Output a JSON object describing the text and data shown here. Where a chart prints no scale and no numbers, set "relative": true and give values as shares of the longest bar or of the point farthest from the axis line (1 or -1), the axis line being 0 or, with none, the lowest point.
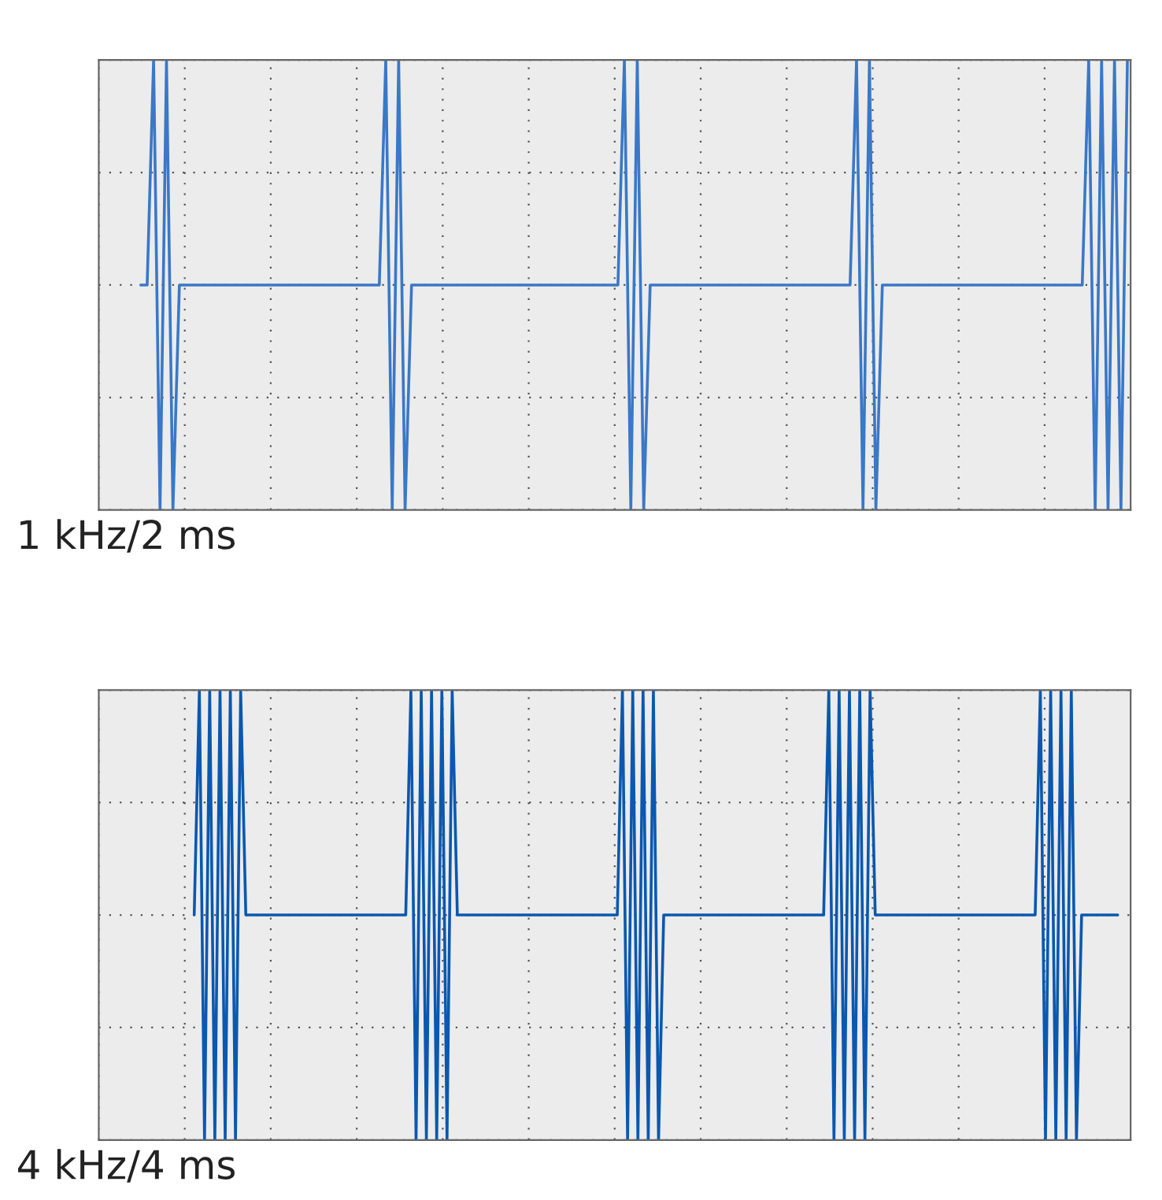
{
  "chart_data": [
    {
      "type": "line",
      "relative": true,
      "grid": true,
      "tick_labels": false,
      "annotations": [
        "1 kHz/2 ms"
      ],
      "categories": [
        null,
        null,
        null,
        null,
        null,
        null,
        null,
        null,
        null,
        null,
        null,
        null,
        null,
        null,
        null,
        null,
        null,
        null,
        null,
        null,
        null,
        null,
        null,
        null,
        null,
        null,
        null,
        null,
        null,
        null,
        null,
        null,
        null,
        null,
        null,
        null,
        null,
        null,
        null,
        null,
        null,
        null,
        null,
        null,
        null,
        null,
        null,
        null,
        null,
        null,
        null,
        null,
        null,
        null,
        null,
        null,
        null,
        null,
        null,
        null,
        null,
        null,
        null,
        null,
        null,
        null,
        null,
        null,
        null,
        null,
        null,
        null,
        null,
        null,
        null,
        null,
        null,
        null,
        null,
        null,
        null,
        null,
        null,
        null,
        null,
        null,
        null,
        null,
        null,
        null,
        null,
        null,
        null,
        null,
        null,
        null,
        null,
        null,
        null,
        null,
        null,
        null,
        null,
        null,
        null,
        null,
        null,
        null,
        null,
        null,
        null,
        null,
        null,
        null,
        null,
        null,
        null,
        null,
        null,
        null,
        null,
        null,
        null,
        null,
        null,
        null,
        null,
        null,
        null,
        null,
        null,
        null,
        null,
        null,
        null,
        null,
        null,
        null,
        null,
        null,
        null,
        null,
        null,
        null,
        null,
        null,
        null,
        null,
        null,
        null,
        null,
        null,
        null,
        null,
        null,
        null,
        null,
        null,
        null,
        null
      ],
      "series": [
        {
          "color": "#3a78c8",
          "values": [
            null,
            null,
            null,
            null,
            null,
            null,
            0,
            0,
            1,
            -1,
            1,
            -1,
            0,
            0,
            0,
            0,
            0,
            0,
            0,
            0,
            0,
            0,
            0,
            0,
            0,
            0,
            0,
            0,
            0,
            0,
            0,
            0,
            0,
            0,
            0,
            0,
            0,
            0,
            0,
            0,
            0,
            0,
            0,
            0,
            1,
            -1,
            1,
            -1,
            0,
            0,
            0,
            0,
            0,
            0,
            0,
            0,
            0,
            0,
            0,
            0,
            0,
            0,
            0,
            0,
            0,
            0,
            0,
            0,
            0,
            0,
            0,
            0,
            0,
            0,
            0,
            0,
            0,
            0,
            0,
            0,
            0,
            1,
            -1,
            1,
            -1,
            0,
            0,
            0,
            0,
            0,
            0,
            0,
            0,
            0,
            0,
            0,
            0,
            0,
            0,
            0,
            0,
            0,
            0,
            0,
            0,
            0,
            0,
            0,
            0,
            0,
            0,
            0,
            0,
            0,
            0,
            0,
            0,
            1,
            -1,
            1,
            -1,
            0,
            0,
            0,
            0,
            0,
            0,
            0,
            0,
            0,
            0,
            0,
            0,
            0,
            0,
            0,
            0,
            0,
            0,
            0,
            0,
            0,
            0,
            0,
            0,
            0,
            0,
            0,
            0,
            0,
            0,
            0,
            0,
            1,
            -1,
            1,
            -1,
            1,
            -1,
            1
          ]
        }
      ]
    },
    {
      "type": "line",
      "relative": true,
      "grid": true,
      "tick_labels": false,
      "annotations": [
        "4 kHz/4 ms"
      ],
      "categories": [
        null,
        null,
        null,
        null,
        null,
        null,
        null,
        null,
        null,
        null,
        null,
        null,
        null,
        null,
        null,
        null,
        null,
        null,
        null,
        null,
        null,
        null,
        null,
        null,
        null,
        null,
        null,
        null,
        null,
        null,
        null,
        null,
        null,
        null,
        null,
        null,
        null,
        null,
        null,
        null,
        null,
        null,
        null,
        null,
        null,
        null,
        null,
        null,
        null,
        null,
        null,
        null,
        null,
        null,
        null,
        null,
        null,
        null,
        null,
        null,
        null,
        null,
        null,
        null,
        null,
        null,
        null,
        null,
        null,
        null,
        null,
        null,
        null,
        null,
        null,
        null,
        null,
        null,
        null,
        null,
        null,
        null,
        null,
        null,
        null,
        null,
        null,
        null,
        null,
        null,
        null,
        null,
        null,
        null,
        null,
        null,
        null,
        null,
        null,
        null,
        null,
        null,
        null,
        null,
        null,
        null,
        null,
        null,
        null,
        null,
        null,
        null,
        null,
        null,
        null,
        null,
        null,
        null,
        null,
        null,
        null,
        null,
        null,
        null,
        null,
        null,
        null,
        null,
        null,
        null,
        null,
        null,
        null,
        null,
        null,
        null,
        null,
        null,
        null,
        null,
        null,
        null,
        null,
        null,
        null,
        null,
        null,
        null,
        null,
        null,
        null,
        null,
        null,
        null,
        null,
        null,
        null,
        null,
        null,
        null,
        null,
        null,
        null,
        null,
        null,
        null,
        null,
        null,
        null,
        null,
        null,
        null,
        null,
        null,
        null,
        null,
        null,
        null,
        null,
        null,
        null,
        null,
        null,
        null,
        null,
        null,
        null,
        null,
        null,
        null,
        null,
        null,
        null,
        null,
        null,
        null,
        null,
        null,
        null,
        null
      ],
      "series": [
        {
          "color": "#0a58b0",
          "values": [
            null,
            null,
            null,
            null,
            null,
            null,
            null,
            null,
            null,
            null,
            null,
            null,
            null,
            null,
            null,
            null,
            null,
            null,
            0,
            1,
            -1,
            1,
            -1,
            1,
            -1,
            1,
            -1,
            1,
            0,
            0,
            0,
            0,
            0,
            0,
            0,
            0,
            0,
            0,
            0,
            0,
            0,
            0,
            0,
            0,
            0,
            0,
            0,
            0,
            0,
            0,
            0,
            0,
            0,
            0,
            0,
            0,
            0,
            0,
            0,
            0,
            1,
            -1,
            1,
            -1,
            1,
            -1,
            1,
            -1,
            1,
            0,
            0,
            0,
            0,
            0,
            0,
            0,
            0,
            0,
            0,
            0,
            0,
            0,
            0,
            0,
            0,
            0,
            0,
            0,
            0,
            0,
            0,
            0,
            0,
            0,
            0,
            0,
            0,
            0,
            0,
            0,
            0,
            1,
            -1,
            1,
            -1,
            1,
            -1,
            1,
            -1,
            0,
            0,
            0,
            0,
            0,
            0,
            0,
            0,
            0,
            0,
            0,
            0,
            0,
            0,
            0,
            0,
            0,
            0,
            0,
            0,
            0,
            0,
            0,
            0,
            0,
            0,
            0,
            0,
            0,
            0,
            0,
            0,
            1,
            -1,
            1,
            -1,
            1,
            -1,
            1,
            -1,
            1,
            0,
            0,
            0,
            0,
            0,
            0,
            0,
            0,
            0,
            0,
            0,
            0,
            0,
            0,
            0,
            0,
            0,
            0,
            0,
            0,
            0,
            0,
            0,
            0,
            0,
            0,
            0,
            0,
            0,
            0,
            0,
            0,
            1,
            -1,
            1,
            -1,
            1,
            -1,
            1,
            -1,
            0,
            0,
            0,
            0,
            0,
            0,
            0,
            0,
            null,
            null
          ]
        }
      ]
    }
  ]
}
